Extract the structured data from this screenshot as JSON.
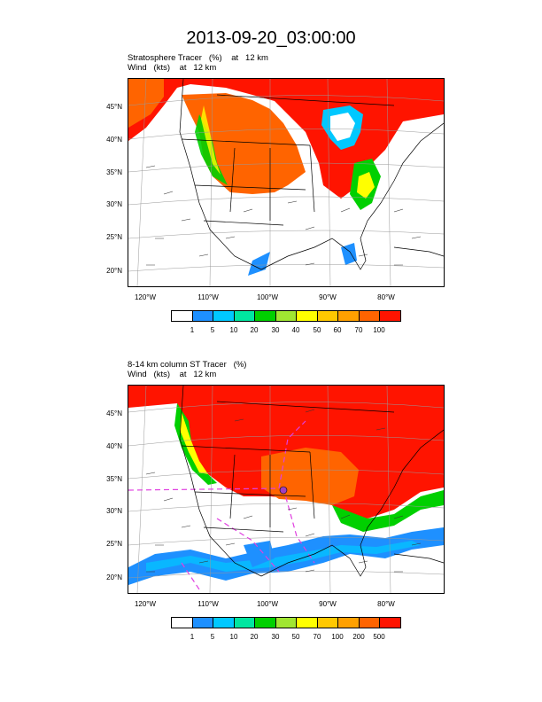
{
  "title": "2013-09-20_03:00:00",
  "panels": [
    {
      "title_line1": "Stratosphere Tracer   (%)    at   12 km",
      "title_line2": "Wind   (kts)    at   12 km",
      "lat_labels": [
        "45°N",
        "40°N",
        "35°N",
        "30°N",
        "25°N",
        "20°N"
      ],
      "lon_labels": [
        "120°W",
        "110°W",
        "100°W",
        "90°W",
        "80°W"
      ],
      "colorbar_labels": [
        "1",
        "5",
        "10",
        "20",
        "30",
        "40",
        "50",
        "60",
        "70",
        "100"
      ]
    },
    {
      "title_line1": "8-14 km column ST Tracer   (%)",
      "title_line2": "Wind   (kts)    at   12 km",
      "lat_labels": [
        "45°N",
        "40°N",
        "35°N",
        "30°N",
        "25°N",
        "20°N"
      ],
      "lon_labels": [
        "120°W",
        "110°W",
        "100°W",
        "90°W",
        "80°W"
      ],
      "colorbar_labels": [
        "1",
        "5",
        "10",
        "20",
        "30",
        "50",
        "70",
        "100",
        "200",
        "500"
      ]
    }
  ],
  "colorbar_colors": [
    "#ffffff",
    "#1e90ff",
    "#00c8ff",
    "#00e6a0",
    "#00d000",
    "#a0e632",
    "#ffff00",
    "#ffc800",
    "#ffa000",
    "#ff6400",
    "#ff1400"
  ]
}
